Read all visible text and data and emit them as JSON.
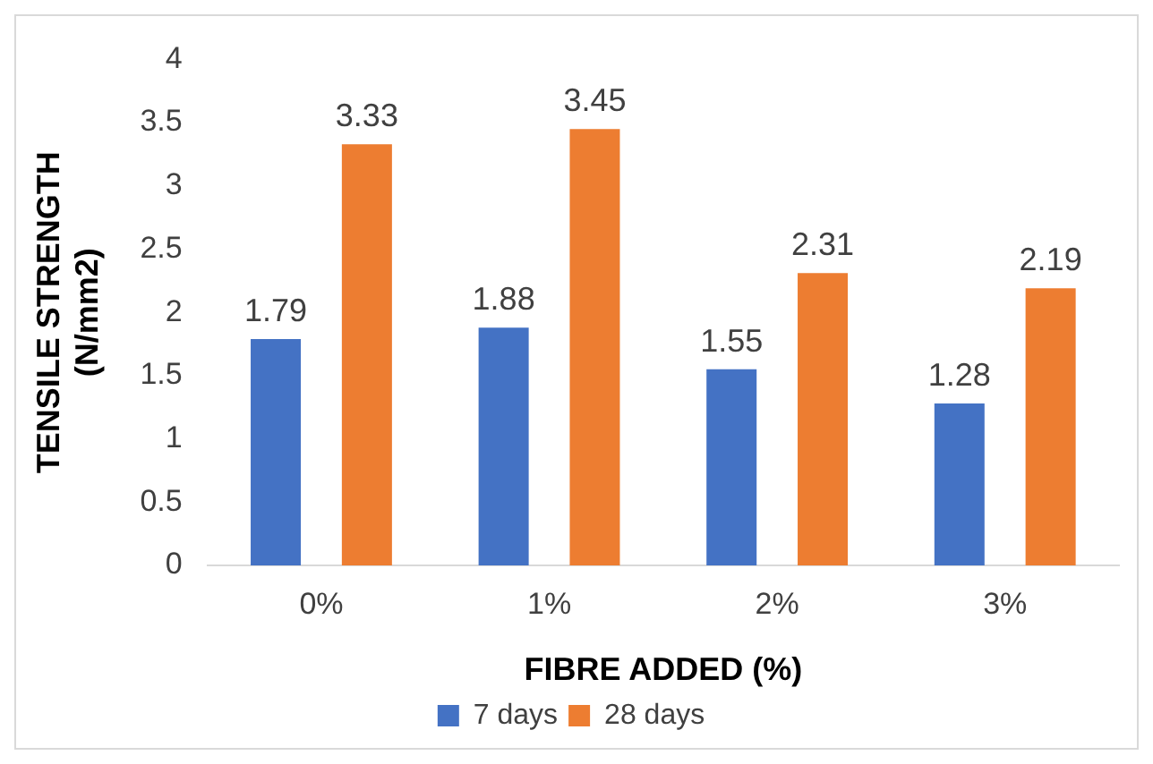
{
  "chart_data": {
    "type": "bar",
    "xlabel": "FIBRE ADDED (%)",
    "ylabel": "TENSILE STRENGTH\n(N/mm2)",
    "categories": [
      "0%",
      "1%",
      "2%",
      "3%"
    ],
    "series": [
      {
        "name": "7 days",
        "color": "#4472c4",
        "values": [
          1.79,
          1.88,
          1.55,
          1.28
        ]
      },
      {
        "name": "28 days",
        "color": "#ed7d31",
        "values": [
          3.33,
          3.45,
          2.31,
          2.19
        ]
      }
    ],
    "ylim": [
      0,
      4
    ],
    "yticks": [
      0,
      0.5,
      1,
      1.5,
      2,
      2.5,
      3,
      3.5,
      4
    ],
    "grid": false,
    "legend": "bottom",
    "data_labels": true
  }
}
